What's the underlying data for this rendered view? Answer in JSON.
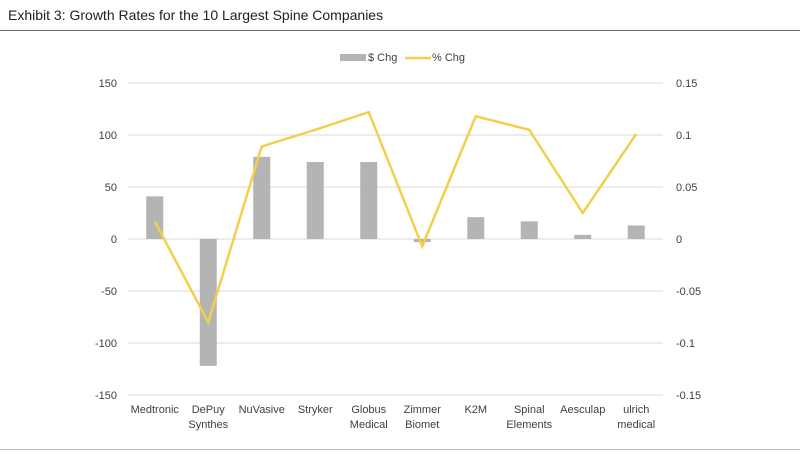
{
  "header": {
    "title": "Exhibit 3: Growth Rates for the 10 Largest Spine Companies"
  },
  "chart_data": {
    "type": "bar",
    "categories": [
      [
        "Medtronic"
      ],
      [
        "DePuy",
        "Synthes"
      ],
      [
        "NuVasive"
      ],
      [
        "Stryker"
      ],
      [
        "Globus",
        "Medical"
      ],
      [
        "Zimmer",
        "Biomet"
      ],
      [
        "K2M"
      ],
      [
        "Spinal",
        "Elements"
      ],
      [
        "Aesculap"
      ],
      [
        "ulrich",
        "medical"
      ]
    ],
    "series": [
      {
        "name": "$ Chg",
        "type": "bar",
        "axis": "left",
        "color": "#b4b4b4",
        "values": [
          41,
          -122,
          79,
          74,
          74,
          -3,
          21,
          17,
          4,
          13
        ]
      },
      {
        "name": "% Chg",
        "type": "line",
        "axis": "right",
        "color": "#f2d04a",
        "values": [
          0.017,
          -0.08,
          0.089,
          0.105,
          0.122,
          -0.007,
          0.118,
          0.105,
          0.025,
          0.101
        ]
      }
    ],
    "y_left": {
      "min": -150,
      "max": 150,
      "ticks": [
        "150",
        "100",
        "50",
        "0",
        "-50",
        "-100",
        "-150"
      ]
    },
    "y_right": {
      "min": -0.15,
      "max": 0.15,
      "ticks": [
        "0.15",
        "0.1",
        "0.05",
        "0",
        "-0.05",
        "-0.1",
        "-0.15"
      ]
    },
    "grid": true,
    "legend_position": "top-center"
  }
}
